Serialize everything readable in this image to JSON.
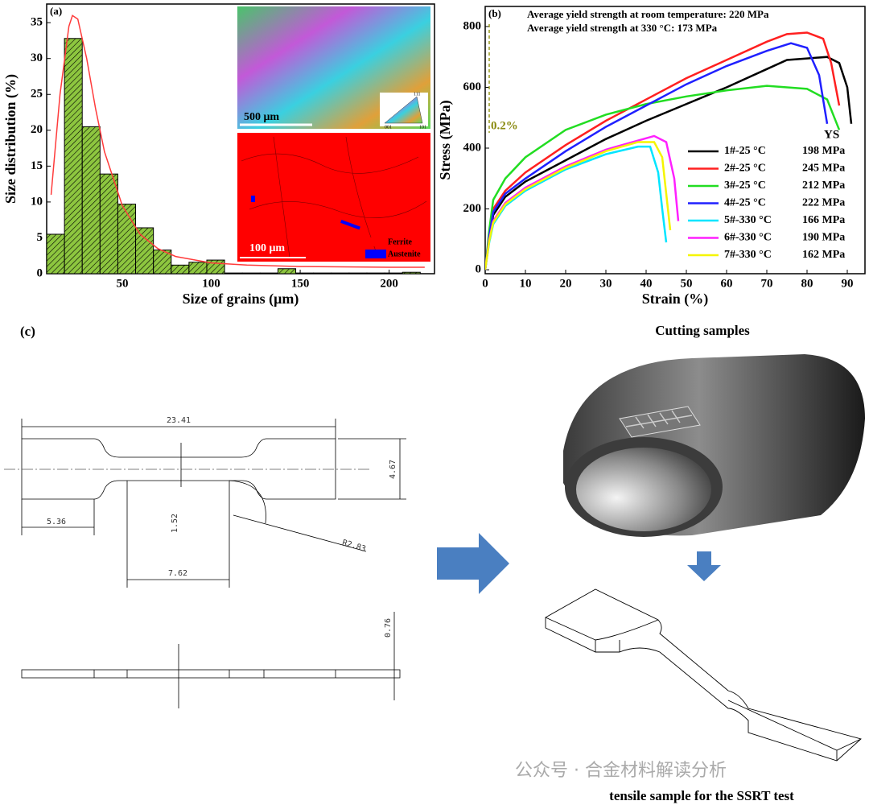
{
  "chart_data": [
    {
      "type": "histogram",
      "panel_label": "(a)",
      "x_label": "Size of grains (μm)",
      "y_label": "Size distribution (%)",
      "bins": [
        7.5,
        17.5,
        27.5,
        37.5,
        47.5,
        57.5,
        67.5,
        77.5,
        87.5,
        97.5,
        107.5,
        117.5,
        127.5,
        137.5,
        147.5,
        157.5,
        167.5,
        177.5,
        187.5,
        197.5,
        207.5,
        217.5
      ],
      "values": [
        5.5,
        32.8,
        20.5,
        13.9,
        9.7,
        6.4,
        3.3,
        1.2,
        1.6,
        1.9,
        0.1,
        0.1,
        0.1,
        0.7,
        0.1,
        0.1,
        0.1,
        0.1,
        0.1,
        0.1,
        0.2
      ],
      "color": "#8dc63f",
      "fit_x": [
        10,
        15,
        20,
        22,
        25,
        30,
        35,
        40,
        50,
        60,
        70,
        80,
        100,
        120,
        150,
        200,
        220
      ],
      "fit_y": [
        11,
        25,
        34.5,
        36,
        35.5,
        30,
        23,
        17,
        9.5,
        5.5,
        3.5,
        2.4,
        1.5,
        1.2,
        1.0,
        0.9,
        0.9
      ],
      "fit_color": "#ff3b3b",
      "xlim": [
        7.5,
        225.5
      ],
      "xticks": [
        50,
        100,
        150,
        200
      ],
      "ylim": [
        0,
        37.6
      ],
      "yticks": [
        0,
        5,
        10,
        15,
        20,
        25,
        30,
        35
      ],
      "insets": {
        "scale_top": "500 μm",
        "scale_bottom": "100 μm",
        "ipf_labels": [
          "001",
          "101",
          "111"
        ],
        "legend": [
          {
            "name": "Ferrite",
            "color": "#ff0000"
          },
          {
            "name": "Austenite",
            "color": "#0000ff"
          }
        ]
      }
    },
    {
      "type": "line",
      "panel_label": "(b)",
      "x_label": "Strain (%)",
      "y_label": "Stress (MPa)",
      "annotations": [
        "Average yield strength at room temperature: 220 MPa",
        "Average yield strength at 330 °C: 173 MPa",
        "0.2%",
        "YS"
      ],
      "xlim": [
        0,
        94.4
      ],
      "xticks": [
        0,
        10,
        20,
        30,
        40,
        50,
        60,
        70,
        80,
        90
      ],
      "ylim": [
        -13,
        866
      ],
      "yticks": [
        0,
        200,
        400,
        600,
        800
      ],
      "series": [
        {
          "name": "1#-25 °C",
          "ys": "198 MPa",
          "color": "#000000",
          "x": [
            0,
            1,
            2,
            5,
            10,
            20,
            30,
            40,
            50,
            60,
            70,
            75,
            80,
            85,
            88,
            90,
            91
          ],
          "values": [
            0,
            100,
            180,
            240,
            290,
            360,
            430,
            490,
            545,
            600,
            660,
            690,
            695,
            700,
            680,
            600,
            480
          ]
        },
        {
          "name": "2#-25 °C",
          "ys": "245 MPa",
          "color": "#ff2020",
          "x": [
            0,
            1,
            2,
            5,
            10,
            20,
            30,
            40,
            50,
            60,
            70,
            75,
            80,
            84,
            86,
            88
          ],
          "values": [
            0,
            110,
            200,
            260,
            320,
            410,
            490,
            560,
            630,
            690,
            750,
            775,
            780,
            760,
            680,
            540
          ]
        },
        {
          "name": "3#-25 °C",
          "ys": "212 MPa",
          "color": "#22dd22",
          "x": [
            0,
            1,
            2,
            5,
            10,
            20,
            30,
            40,
            50,
            60,
            70,
            80,
            85,
            88
          ],
          "values": [
            0,
            130,
            230,
            300,
            370,
            460,
            510,
            545,
            570,
            590,
            605,
            595,
            560,
            460
          ]
        },
        {
          "name": "4#-25 °C",
          "ys": "222 MPa",
          "color": "#2020ff",
          "x": [
            0,
            1,
            2,
            5,
            10,
            20,
            30,
            40,
            50,
            60,
            70,
            76,
            80,
            83,
            85
          ],
          "values": [
            0,
            110,
            190,
            250,
            300,
            390,
            470,
            540,
            610,
            670,
            720,
            745,
            730,
            640,
            480
          ]
        },
        {
          "name": "5#-330 °C",
          "ys": "166 MPa",
          "color": "#00e5ff",
          "x": [
            0,
            1,
            2,
            5,
            10,
            20,
            30,
            38,
            41,
            43,
            44,
            45
          ],
          "values": [
            0,
            90,
            150,
            210,
            260,
            330,
            380,
            405,
            405,
            320,
            200,
            90
          ]
        },
        {
          "name": "6#-330 °C",
          "ys": "190 MPa",
          "color": "#ff20ff",
          "x": [
            0,
            1,
            2,
            5,
            10,
            20,
            30,
            38,
            42,
            45,
            47,
            48
          ],
          "values": [
            0,
            100,
            160,
            220,
            270,
            340,
            395,
            425,
            440,
            420,
            300,
            160
          ]
        },
        {
          "name": "7#-330 °C",
          "ys": "162 MPa",
          "color": "#f5f500",
          "x": [
            0,
            1,
            2,
            5,
            10,
            20,
            30,
            38,
            42,
            44,
            45,
            46
          ],
          "values": [
            0,
            95,
            155,
            215,
            265,
            335,
            390,
            420,
            420,
            370,
            250,
            130
          ]
        }
      ]
    }
  ],
  "diagram": {
    "panel_label": "(c)",
    "dimensions": [
      "23.41",
      "4.67",
      "5.36",
      "1.52",
      "7.62",
      "R2.83",
      "0.76"
    ],
    "cutting_title": "Cutting samples",
    "sample_caption": "tensile sample for the SSRT test",
    "watermark": "公众号 · 合金材料解读分析"
  }
}
